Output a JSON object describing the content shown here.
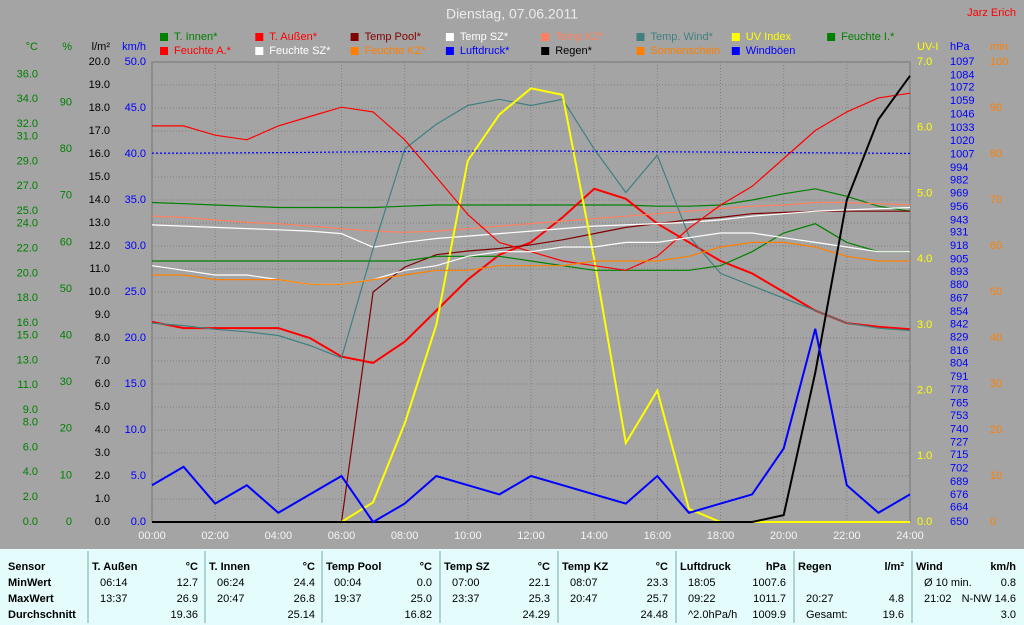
{
  "header": {
    "title": "Dienstag, 07.06.2011",
    "author": "Jarz Erich"
  },
  "chart_data": {
    "type": "line",
    "x": [
      0,
      1,
      2,
      3,
      4,
      5,
      6,
      7,
      8,
      9,
      10,
      11,
      12,
      13,
      14,
      15,
      16,
      17,
      18,
      19,
      20,
      21,
      22,
      23,
      24
    ],
    "xlim": [
      0,
      24
    ],
    "xticks": [
      {
        "value": 0,
        "label": "00:00"
      },
      {
        "value": 2,
        "label": "02:00"
      },
      {
        "value": 4,
        "label": "04:00"
      },
      {
        "value": 6,
        "label": "06:00"
      },
      {
        "value": 8,
        "label": "08:00"
      },
      {
        "value": 10,
        "label": "10:00"
      },
      {
        "value": 12,
        "label": "12:00"
      },
      {
        "value": 14,
        "label": "14:00"
      },
      {
        "value": 16,
        "label": "16:00"
      },
      {
        "value": 18,
        "label": "18:00"
      },
      {
        "value": 20,
        "label": "20:00"
      },
      {
        "value": 22,
        "label": "22:00"
      },
      {
        "value": 24,
        "label": "24:00"
      }
    ],
    "grid": true,
    "axes": {
      "c": {
        "label": "°C",
        "color": "#008000",
        "lim": [
          0,
          37
        ],
        "ticks": [
          {
            "value": 36,
            "label": "36.0"
          },
          {
            "value": 34,
            "label": "34.0"
          },
          {
            "value": 32,
            "label": "32.0"
          },
          {
            "value": 31,
            "label": "31.0"
          },
          {
            "value": 29,
            "label": "29.0"
          },
          {
            "value": 27,
            "label": "27.0"
          },
          {
            "value": 25,
            "label": "25.0"
          },
          {
            "value": 24,
            "label": "24.0"
          },
          {
            "value": 22,
            "label": "22.0"
          },
          {
            "value": 20,
            "label": "20.0"
          },
          {
            "value": 18,
            "label": "18.0"
          },
          {
            "value": 16,
            "label": "16.0"
          },
          {
            "value": 15,
            "label": "15.0"
          },
          {
            "value": 13,
            "label": "13.0"
          },
          {
            "value": 11,
            "label": "11.0"
          },
          {
            "value": 9,
            "label": "9.0"
          },
          {
            "value": 8,
            "label": "8.0"
          },
          {
            "value": 6,
            "label": "6.0"
          },
          {
            "value": 4,
            "label": "4.0"
          },
          {
            "value": 2,
            "label": "2.0"
          },
          {
            "value": 0,
            "label": "0.0"
          }
        ]
      },
      "pct": {
        "label": "%",
        "color": "#008000",
        "lim": [
          0,
          98.7
        ],
        "ticks": [
          90,
          80,
          70,
          60,
          50,
          40,
          30,
          20,
          10,
          0
        ]
      },
      "rain": {
        "label": "l/m²",
        "color": "#000000",
        "lim": [
          0,
          20
        ],
        "ticks": [
          {
            "value": 20,
            "label": "20.0"
          },
          {
            "value": 19,
            "label": "19.0"
          },
          {
            "value": 18,
            "label": "18.0"
          },
          {
            "value": 17,
            "label": "17.0"
          },
          {
            "value": 16,
            "label": "16.0"
          },
          {
            "value": 15,
            "label": "15.0"
          },
          {
            "value": 14,
            "label": "14.0"
          },
          {
            "value": 13,
            "label": "13.0"
          },
          {
            "value": 12,
            "label": "12.0"
          },
          {
            "value": 11,
            "label": "11.0"
          },
          {
            "value": 10,
            "label": "10.0"
          },
          {
            "value": 9,
            "label": "9.0"
          },
          {
            "value": 8,
            "label": "8.0"
          },
          {
            "value": 7,
            "label": "7.0"
          },
          {
            "value": 6,
            "label": "6.0"
          },
          {
            "value": 5,
            "label": "5.0"
          },
          {
            "value": 4,
            "label": "4.0"
          },
          {
            "value": 3,
            "label": "3.0"
          },
          {
            "value": 2,
            "label": "2.0"
          },
          {
            "value": 1,
            "label": "1.0"
          },
          {
            "value": 0,
            "label": "0.0"
          }
        ]
      },
      "kmh": {
        "label": "km/h",
        "color": "#0000ff",
        "lim": [
          0,
          50
        ],
        "ticks": [
          {
            "value": 50,
            "label": "50.0"
          },
          {
            "value": 45,
            "label": "45.0"
          },
          {
            "value": 40,
            "label": "40.0"
          },
          {
            "value": 35,
            "label": "35.0"
          },
          {
            "value": 30,
            "label": "30.0"
          },
          {
            "value": 25,
            "label": "25.0"
          },
          {
            "value": 20,
            "label": "20.0"
          },
          {
            "value": 15,
            "label": "15.0"
          },
          {
            "value": 10,
            "label": "10.0"
          },
          {
            "value": 5,
            "label": "5.0"
          },
          {
            "value": 0,
            "label": "0.0"
          }
        ]
      },
      "uv": {
        "label": "UV-I",
        "color": "#ffff00",
        "lim": [
          0,
          7
        ],
        "ticks": [
          {
            "value": 7,
            "label": "7.0"
          },
          {
            "value": 6,
            "label": "6.0"
          },
          {
            "value": 5,
            "label": "5.0"
          },
          {
            "value": 4,
            "label": "4.0"
          },
          {
            "value": 3,
            "label": "3.0"
          },
          {
            "value": 2,
            "label": "2.0"
          },
          {
            "value": 1,
            "label": "1.0"
          },
          {
            "value": 0,
            "label": "0.0"
          }
        ]
      },
      "hpa": {
        "label": "hPa",
        "color": "#0000ff",
        "lim": [
          650,
          1097
        ],
        "ticks": [
          1097,
          1084,
          1072,
          1059,
          1046,
          1033,
          1020,
          1007,
          994,
          982,
          969,
          956,
          943,
          931,
          918,
          905,
          893,
          880,
          867,
          854,
          842,
          829,
          816,
          804,
          791,
          778,
          765,
          753,
          740,
          727,
          715,
          702,
          689,
          676,
          664,
          650
        ]
      },
      "min": {
        "label": "min",
        "color": "#ff8000",
        "lim": [
          0,
          100
        ],
        "ticks": [
          100,
          90,
          80,
          70,
          60,
          50,
          40,
          30,
          20,
          10,
          0
        ]
      }
    },
    "series": [
      {
        "name": "T. Innen*",
        "color": "#008000",
        "axis": "c",
        "values": [
          25.7,
          25.6,
          25.5,
          25.4,
          25.3,
          25.3,
          25.3,
          25.3,
          25.4,
          25.5,
          25.5,
          25.5,
          25.5,
          25.5,
          25.5,
          25.5,
          25.4,
          25.4,
          25.5,
          25.9,
          26.4,
          26.8,
          26.2,
          25.4,
          25.0
        ]
      },
      {
        "name": "T. Außen*",
        "color": "#ff0000",
        "axis": "c",
        "values": [
          16.1,
          15.6,
          15.6,
          15.6,
          15.6,
          14.8,
          13.3,
          12.8,
          14.5,
          17.0,
          19.5,
          21.5,
          22.5,
          24.5,
          26.8,
          26.0,
          24.0,
          22.5,
          21.0,
          20.0,
          18.5,
          17.0,
          16.0,
          15.7,
          15.5
        ]
      },
      {
        "name": "Temp Pool*",
        "color": "#800000",
        "axis": "c",
        "values": [
          0,
          0,
          0,
          0,
          0,
          0,
          0,
          18.5,
          20.5,
          21.5,
          21.8,
          22.0,
          22.3,
          22.7,
          23.2,
          23.7,
          24.0,
          24.3,
          24.5,
          24.8,
          24.9,
          25.0,
          25.0,
          25.0,
          25.0
        ]
      },
      {
        "name": "Temp SZ*",
        "color": "#ffffff",
        "axis": "c",
        "values": [
          23.9,
          23.8,
          23.7,
          23.6,
          23.5,
          23.4,
          23.2,
          22.1,
          22.5,
          22.8,
          23.0,
          23.2,
          23.4,
          23.6,
          23.8,
          23.9,
          24.0,
          24.1,
          24.3,
          24.6,
          24.8,
          25.0,
          25.1,
          25.2,
          25.3
        ]
      },
      {
        "name": "Temp KZ*",
        "color": "#ff8060",
        "axis": "c",
        "values": [
          24.6,
          24.5,
          24.3,
          24.1,
          24.0,
          23.8,
          23.6,
          23.4,
          23.3,
          23.4,
          23.6,
          23.8,
          24.0,
          24.2,
          24.4,
          24.6,
          24.8,
          25.0,
          25.2,
          25.4,
          25.5,
          25.7,
          25.7,
          25.6,
          25.5
        ]
      },
      {
        "name": "Temp. Wind*",
        "color": "#408080",
        "axis": "c",
        "values": [
          16.0,
          15.8,
          15.5,
          15.3,
          15.0,
          14.2,
          13.2,
          22.0,
          30.0,
          32.0,
          33.5,
          34.0,
          33.5,
          34.0,
          30.0,
          26.5,
          29.5,
          23.0,
          20.0,
          19.0,
          18.0,
          17.0,
          16.0,
          15.6,
          15.4
        ]
      },
      {
        "name": "UV Index",
        "color": "#ffff00",
        "axis": "uv",
        "values": [
          0,
          0,
          0,
          0,
          0,
          0,
          0,
          0.3,
          1.5,
          3.0,
          5.5,
          6.2,
          6.6,
          6.5,
          4.0,
          1.2,
          2.0,
          0.2,
          0,
          0,
          0,
          0,
          0,
          0,
          0
        ]
      },
      {
        "name": "Feuchte I.*",
        "color": "#008000",
        "axis": "pct",
        "values": [
          56,
          56,
          56,
          56,
          56,
          56,
          56,
          56,
          56,
          57,
          57,
          57,
          56,
          55,
          54,
          54,
          54,
          54,
          55,
          58,
          62,
          64,
          60,
          58,
          58
        ]
      },
      {
        "name": "Feuchte A.*",
        "color": "#ff0000",
        "axis": "pct",
        "values": [
          85,
          85,
          83,
          82,
          85,
          87,
          89,
          88,
          82,
          74,
          66,
          60,
          58,
          56,
          55,
          54,
          57,
          63,
          68,
          72,
          78,
          84,
          88,
          91,
          92
        ]
      },
      {
        "name": "Feuchte SZ*",
        "color": "#ffffff",
        "axis": "pct",
        "values": [
          55,
          54,
          53,
          53,
          52,
          51,
          51,
          52,
          54,
          55,
          57,
          58,
          58,
          59,
          59,
          60,
          60,
          61,
          62,
          62,
          61,
          60,
          59,
          58,
          58
        ]
      },
      {
        "name": "Feuchte KZ*",
        "color": "#ff8000",
        "axis": "pct",
        "values": [
          53,
          53,
          52,
          52,
          52,
          51,
          51,
          52,
          53,
          54,
          54,
          55,
          55,
          55,
          56,
          56,
          56,
          57,
          59,
          60,
          60,
          59,
          57,
          56,
          56
        ]
      },
      {
        "name": "Luftdruck*",
        "color": "#0000ff",
        "axis": "hpa",
        "dashed": true,
        "values": [
          1008.5,
          1008.5,
          1008.6,
          1008.8,
          1009.0,
          1009.2,
          1009.5,
          1009.8,
          1010.0,
          1010.2,
          1010.4,
          1010.6,
          1010.6,
          1010.4,
          1010.2,
          1010.0,
          1009.8,
          1009.6,
          1009.4,
          1009.2,
          1009.0,
          1008.8,
          1008.6,
          1008.4,
          1008.2
        ]
      },
      {
        "name": "Regen*",
        "color": "#000000",
        "axis": "rain",
        "values": [
          0,
          0,
          0,
          0,
          0,
          0,
          0,
          0,
          0,
          0,
          0,
          0,
          0,
          0,
          0,
          0,
          0,
          0,
          0,
          0,
          0.3,
          6.5,
          14,
          17.5,
          19.4
        ]
      },
      {
        "name": "Sonnenschein",
        "color": "#ff8000",
        "axis": "min",
        "values": [
          null,
          null,
          null,
          null,
          null,
          null,
          null,
          null,
          null,
          null,
          null,
          null,
          null,
          null,
          null,
          null,
          null,
          null,
          null,
          null,
          null,
          null,
          null,
          null,
          null
        ]
      },
      {
        "name": "Windböen",
        "color": "#0000ff",
        "axis": "kmh",
        "values": [
          4,
          6,
          2,
          4,
          1,
          3,
          5,
          0,
          2,
          5,
          4,
          3,
          5,
          4,
          3,
          2,
          5,
          1,
          2,
          3,
          8,
          21,
          4,
          1,
          3
        ]
      }
    ]
  },
  "table": {
    "row_labels": [
      "Sensor",
      "MinWert",
      "MaxWert",
      "Durchschnitt"
    ],
    "columns": [
      {
        "name": "T. Außen",
        "unit": "°C",
        "cells": [
          [
            "06:14",
            "12.7"
          ],
          [
            "13:37",
            "26.9"
          ],
          [
            null,
            "19.36"
          ]
        ]
      },
      {
        "name": "T. Innen",
        "unit": "°C",
        "cells": [
          [
            "06:24",
            "24.4"
          ],
          [
            "20:47",
            "26.8"
          ],
          [
            null,
            "25.14"
          ]
        ]
      },
      {
        "name": "Temp Pool",
        "unit": "°C",
        "cells": [
          [
            "00:04",
            "0.0"
          ],
          [
            "19:37",
            "25.0"
          ],
          [
            null,
            "16.82"
          ]
        ]
      },
      {
        "name": "Temp SZ",
        "unit": "°C",
        "cells": [
          [
            "07:00",
            "22.1"
          ],
          [
            "23:37",
            "25.3"
          ],
          [
            null,
            "24.29"
          ]
        ]
      },
      {
        "name": "Temp KZ",
        "unit": "°C",
        "cells": [
          [
            "08:07",
            "23.3"
          ],
          [
            "20:47",
            "25.7"
          ],
          [
            null,
            "24.48"
          ]
        ]
      },
      {
        "name": "Luftdruck",
        "unit": "hPa",
        "cells": [
          [
            "18:05",
            "1007.6"
          ],
          [
            "09:22",
            "1011.7"
          ],
          [
            "^2.0hPa/h",
            "1009.9"
          ]
        ]
      },
      {
        "name": "Regen",
        "unit": "l/m²",
        "cells": [
          [
            null,
            null
          ],
          [
            "20:27",
            "4.8"
          ],
          [
            "Gesamt:",
            "19.6"
          ]
        ]
      },
      {
        "name": "Wind",
        "unit": "km/h",
        "cells": [
          [
            "Ø 10 min.",
            "0.8"
          ],
          [
            "21:02",
            "N-NW 14.6"
          ],
          [
            null,
            "3.0"
          ]
        ]
      }
    ]
  }
}
